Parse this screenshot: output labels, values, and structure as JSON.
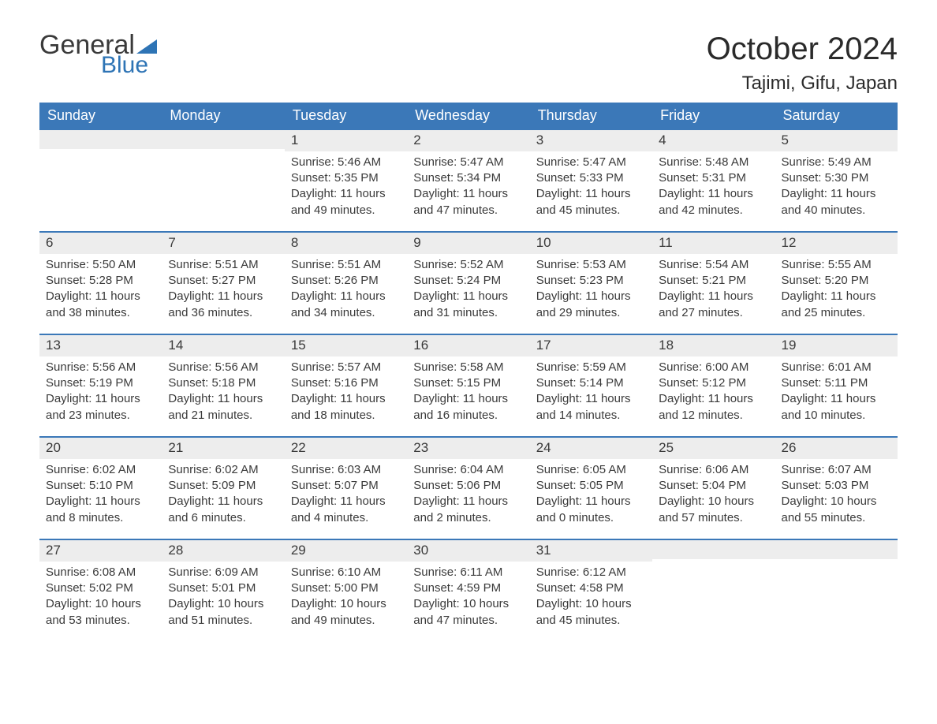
{
  "brand": {
    "word1": "General",
    "word2": "Blue",
    "flag_color": "#2e74b5"
  },
  "header": {
    "title": "October 2024",
    "location": "Tajimi, Gifu, Japan"
  },
  "colors": {
    "header_bar": "#3b78b8",
    "header_text": "#ffffff",
    "daynum_bg": "#ededed",
    "week_border": "#3b78b8",
    "text": "#3a3a3a"
  },
  "weekdays": [
    "Sunday",
    "Monday",
    "Tuesday",
    "Wednesday",
    "Thursday",
    "Friday",
    "Saturday"
  ],
  "labels": {
    "sunrise": "Sunrise:",
    "sunset": "Sunset:",
    "daylight": "Daylight:"
  },
  "weeks": [
    [
      {
        "blank": true
      },
      {
        "blank": true
      },
      {
        "num": "1",
        "sunrise": "5:46 AM",
        "sunset": "5:35 PM",
        "daylight": "11 hours and 49 minutes."
      },
      {
        "num": "2",
        "sunrise": "5:47 AM",
        "sunset": "5:34 PM",
        "daylight": "11 hours and 47 minutes."
      },
      {
        "num": "3",
        "sunrise": "5:47 AM",
        "sunset": "5:33 PM",
        "daylight": "11 hours and 45 minutes."
      },
      {
        "num": "4",
        "sunrise": "5:48 AM",
        "sunset": "5:31 PM",
        "daylight": "11 hours and 42 minutes."
      },
      {
        "num": "5",
        "sunrise": "5:49 AM",
        "sunset": "5:30 PM",
        "daylight": "11 hours and 40 minutes."
      }
    ],
    [
      {
        "num": "6",
        "sunrise": "5:50 AM",
        "sunset": "5:28 PM",
        "daylight": "11 hours and 38 minutes."
      },
      {
        "num": "7",
        "sunrise": "5:51 AM",
        "sunset": "5:27 PM",
        "daylight": "11 hours and 36 minutes."
      },
      {
        "num": "8",
        "sunrise": "5:51 AM",
        "sunset": "5:26 PM",
        "daylight": "11 hours and 34 minutes."
      },
      {
        "num": "9",
        "sunrise": "5:52 AM",
        "sunset": "5:24 PM",
        "daylight": "11 hours and 31 minutes."
      },
      {
        "num": "10",
        "sunrise": "5:53 AM",
        "sunset": "5:23 PM",
        "daylight": "11 hours and 29 minutes."
      },
      {
        "num": "11",
        "sunrise": "5:54 AM",
        "sunset": "5:21 PM",
        "daylight": "11 hours and 27 minutes."
      },
      {
        "num": "12",
        "sunrise": "5:55 AM",
        "sunset": "5:20 PM",
        "daylight": "11 hours and 25 minutes."
      }
    ],
    [
      {
        "num": "13",
        "sunrise": "5:56 AM",
        "sunset": "5:19 PM",
        "daylight": "11 hours and 23 minutes."
      },
      {
        "num": "14",
        "sunrise": "5:56 AM",
        "sunset": "5:18 PM",
        "daylight": "11 hours and 21 minutes."
      },
      {
        "num": "15",
        "sunrise": "5:57 AM",
        "sunset": "5:16 PM",
        "daylight": "11 hours and 18 minutes."
      },
      {
        "num": "16",
        "sunrise": "5:58 AM",
        "sunset": "5:15 PM",
        "daylight": "11 hours and 16 minutes."
      },
      {
        "num": "17",
        "sunrise": "5:59 AM",
        "sunset": "5:14 PM",
        "daylight": "11 hours and 14 minutes."
      },
      {
        "num": "18",
        "sunrise": "6:00 AM",
        "sunset": "5:12 PM",
        "daylight": "11 hours and 12 minutes."
      },
      {
        "num": "19",
        "sunrise": "6:01 AM",
        "sunset": "5:11 PM",
        "daylight": "11 hours and 10 minutes."
      }
    ],
    [
      {
        "num": "20",
        "sunrise": "6:02 AM",
        "sunset": "5:10 PM",
        "daylight": "11 hours and 8 minutes."
      },
      {
        "num": "21",
        "sunrise": "6:02 AM",
        "sunset": "5:09 PM",
        "daylight": "11 hours and 6 minutes."
      },
      {
        "num": "22",
        "sunrise": "6:03 AM",
        "sunset": "5:07 PM",
        "daylight": "11 hours and 4 minutes."
      },
      {
        "num": "23",
        "sunrise": "6:04 AM",
        "sunset": "5:06 PM",
        "daylight": "11 hours and 2 minutes."
      },
      {
        "num": "24",
        "sunrise": "6:05 AM",
        "sunset": "5:05 PM",
        "daylight": "11 hours and 0 minutes."
      },
      {
        "num": "25",
        "sunrise": "6:06 AM",
        "sunset": "5:04 PM",
        "daylight": "10 hours and 57 minutes."
      },
      {
        "num": "26",
        "sunrise": "6:07 AM",
        "sunset": "5:03 PM",
        "daylight": "10 hours and 55 minutes."
      }
    ],
    [
      {
        "num": "27",
        "sunrise": "6:08 AM",
        "sunset": "5:02 PM",
        "daylight": "10 hours and 53 minutes."
      },
      {
        "num": "28",
        "sunrise": "6:09 AM",
        "sunset": "5:01 PM",
        "daylight": "10 hours and 51 minutes."
      },
      {
        "num": "29",
        "sunrise": "6:10 AM",
        "sunset": "5:00 PM",
        "daylight": "10 hours and 49 minutes."
      },
      {
        "num": "30",
        "sunrise": "6:11 AM",
        "sunset": "4:59 PM",
        "daylight": "10 hours and 47 minutes."
      },
      {
        "num": "31",
        "sunrise": "6:12 AM",
        "sunset": "4:58 PM",
        "daylight": "10 hours and 45 minutes."
      },
      {
        "blank": true
      },
      {
        "blank": true
      }
    ]
  ]
}
